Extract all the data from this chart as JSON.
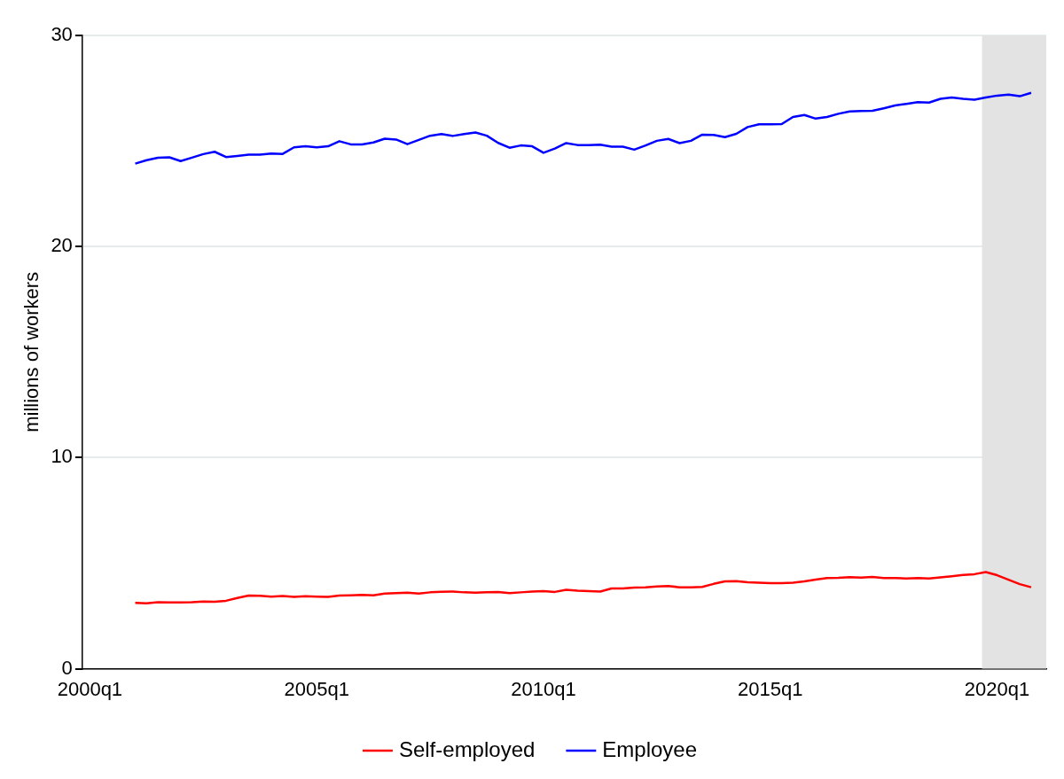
{
  "chart_data": {
    "type": "line",
    "ylabel": "millions of workers",
    "x": [
      "2001-01",
      "2001-04",
      "2001-07",
      "2001-10",
      "2002-01",
      "2002-04",
      "2002-07",
      "2002-10",
      "2003-01",
      "2003-04",
      "2003-07",
      "2003-10",
      "2004-01",
      "2004-04",
      "2004-07",
      "2004-10",
      "2005-01",
      "2005-04",
      "2005-07",
      "2005-10",
      "2006-01",
      "2006-04",
      "2006-07",
      "2006-10",
      "2007-01",
      "2007-04",
      "2007-07",
      "2007-10",
      "2008-01",
      "2008-04",
      "2008-07",
      "2008-10",
      "2009-01",
      "2009-04",
      "2009-07",
      "2009-10",
      "2010-01",
      "2010-04",
      "2010-07",
      "2010-10",
      "2011-01",
      "2011-04",
      "2011-07",
      "2011-10",
      "2012-01",
      "2012-04",
      "2012-07",
      "2012-10",
      "2013-01",
      "2013-04",
      "2013-07",
      "2013-10",
      "2014-01",
      "2014-04",
      "2014-07",
      "2014-10",
      "2015-01",
      "2015-04",
      "2015-07",
      "2015-10",
      "2016-01",
      "2016-04",
      "2016-07",
      "2016-10",
      "2017-01",
      "2017-04",
      "2017-07",
      "2017-10",
      "2018-01",
      "2018-04",
      "2018-07",
      "2018-10",
      "2019-01",
      "2019-04",
      "2019-07",
      "2019-10",
      "2020-01",
      "2020-04",
      "2020-07",
      "2020-10"
    ],
    "series": [
      {
        "name": "Self-employed",
        "color": "#ff0000",
        "values": [
          3.12,
          3.1,
          3.15,
          3.14,
          3.14,
          3.15,
          3.18,
          3.17,
          3.22,
          3.35,
          3.47,
          3.46,
          3.42,
          3.45,
          3.4,
          3.44,
          3.42,
          3.4,
          3.47,
          3.48,
          3.5,
          3.48,
          3.56,
          3.58,
          3.6,
          3.56,
          3.62,
          3.65,
          3.66,
          3.62,
          3.6,
          3.63,
          3.64,
          3.58,
          3.62,
          3.66,
          3.68,
          3.64,
          3.74,
          3.7,
          3.68,
          3.66,
          3.8,
          3.8,
          3.85,
          3.86,
          3.9,
          3.92,
          3.86,
          3.86,
          3.88,
          4.02,
          4.14,
          4.15,
          4.1,
          4.08,
          4.06,
          4.06,
          4.08,
          4.14,
          4.22,
          4.3,
          4.31,
          4.34,
          4.32,
          4.35,
          4.3,
          4.3,
          4.28,
          4.3,
          4.28,
          4.33,
          4.38,
          4.44,
          4.48,
          4.58,
          4.43,
          4.22,
          4.01,
          3.86
        ]
      },
      {
        "name": "Employee",
        "color": "#0000ff",
        "values": [
          23.93,
          24.09,
          24.21,
          24.23,
          24.05,
          24.21,
          24.38,
          24.49,
          24.24,
          24.29,
          24.35,
          24.35,
          24.41,
          24.39,
          24.7,
          24.75,
          24.7,
          24.75,
          24.99,
          24.84,
          24.84,
          24.93,
          25.11,
          25.07,
          24.85,
          25.05,
          25.25,
          25.33,
          25.24,
          25.33,
          25.4,
          25.25,
          24.91,
          24.68,
          24.79,
          24.75,
          24.44,
          24.64,
          24.9,
          24.81,
          24.81,
          24.83,
          24.73,
          24.73,
          24.59,
          24.79,
          25.01,
          25.1,
          24.9,
          25.01,
          25.3,
          25.29,
          25.18,
          25.34,
          25.66,
          25.79,
          25.79,
          25.8,
          26.14,
          26.23,
          26.06,
          26.14,
          26.29,
          26.4,
          26.42,
          26.43,
          26.55,
          26.68,
          26.76,
          26.84,
          26.82,
          27.0,
          27.06,
          27.0,
          26.96,
          27.06,
          27.15,
          27.2,
          27.12,
          27.28
        ]
      }
    ],
    "xlim": [
      "1999-11",
      "2021-02"
    ],
    "xticks": [
      {
        "value": "2000-01",
        "label": "2000q1"
      },
      {
        "value": "2005-01",
        "label": "2005q1"
      },
      {
        "value": "2010-01",
        "label": "2010q1"
      },
      {
        "value": "2015-01",
        "label": "2015q1"
      },
      {
        "value": "2020-01",
        "label": "2020q1"
      }
    ],
    "ylim": [
      0,
      30
    ],
    "yticks": [
      0,
      10,
      20,
      30
    ],
    "bands": [
      {
        "axis": "x",
        "from": "2019-09",
        "to": "2021-02",
        "color": "#e3e3e3"
      }
    ],
    "grid": "y",
    "legend": "bottom",
    "marker": "none",
    "line_style": "solid"
  }
}
